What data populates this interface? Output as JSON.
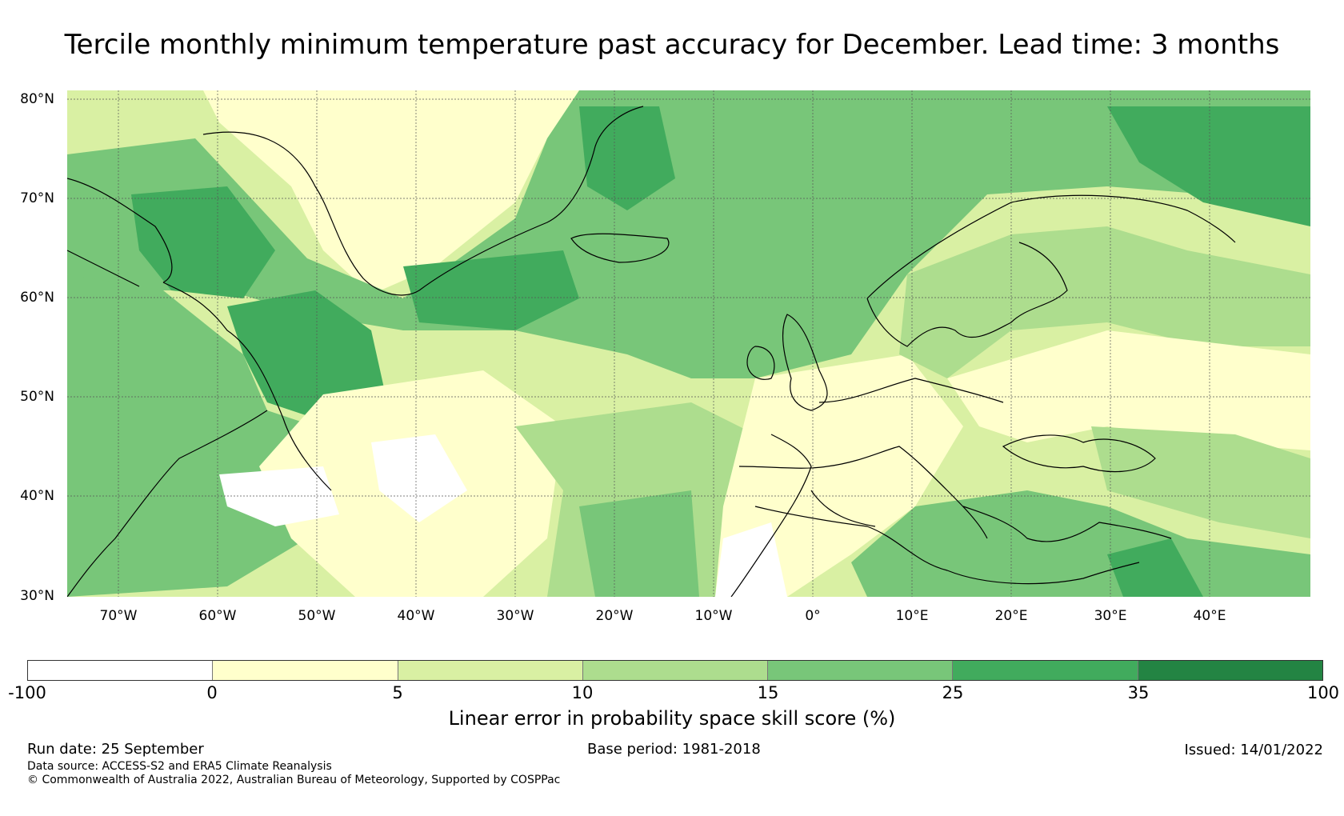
{
  "title": "Tercile monthly minimum temperature past accuracy for December. Lead time: 3 months",
  "map": {
    "lat_labels": [
      "80°N",
      "70°N",
      "60°N",
      "50°N",
      "40°N",
      "30°N"
    ],
    "lon_labels": [
      "70°W",
      "60°W",
      "50°W",
      "40°W",
      "30°W",
      "20°W",
      "10°W",
      "0°",
      "10°E",
      "20°E",
      "30°E",
      "40°E"
    ]
  },
  "colorbar": {
    "ticks": [
      "-100",
      "0",
      "5",
      "10",
      "15",
      "25",
      "35",
      "100"
    ],
    "colors": [
      "#ffffff",
      "#ffffcc",
      "#d9f0a3",
      "#addd8e",
      "#78c679",
      "#41ab5d",
      "#238443"
    ],
    "label": "Linear error in probability space skill score (%)"
  },
  "footer": {
    "run_date": "Run date: 25 September",
    "base_period": "Base period: 1981-2018",
    "issued": "Issued: 14/01/2022",
    "data_source": "Data source: ACCESS-S2 and ERA5 Climate Reanalysis",
    "copyright": "© Commonwealth of Australia 2022, Australian Bureau of Meteorology, Supported by COSPPac"
  }
}
